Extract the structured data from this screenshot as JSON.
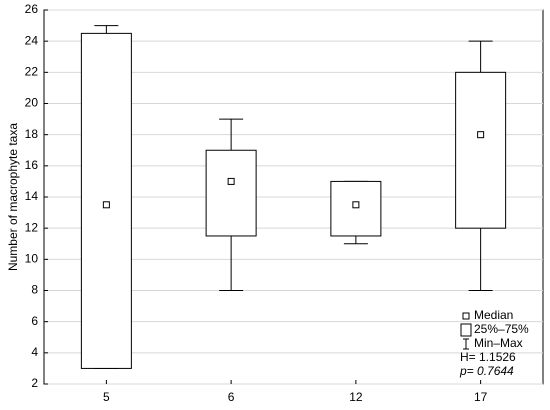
{
  "chart_data": {
    "type": "box",
    "ylabel": "Number of macrophyte taxa",
    "categories": [
      "5",
      "6",
      "12",
      "17"
    ],
    "min": [
      3,
      8,
      11,
      8
    ],
    "q1": [
      3,
      11.5,
      11.5,
      12
    ],
    "median": [
      13.5,
      15,
      13.5,
      18
    ],
    "q3": [
      24.5,
      17,
      15,
      22
    ],
    "max": [
      25,
      19,
      15,
      24
    ],
    "ylim": [
      2,
      26
    ],
    "yticks": [
      2,
      4,
      6,
      8,
      10,
      12,
      14,
      16,
      18,
      20,
      22,
      24,
      26
    ],
    "grid": true,
    "legend": [
      "Median",
      "25%–75%",
      "Min–Max"
    ],
    "annotations": [
      "H= 1.1526",
      "p= 0.7644"
    ]
  }
}
